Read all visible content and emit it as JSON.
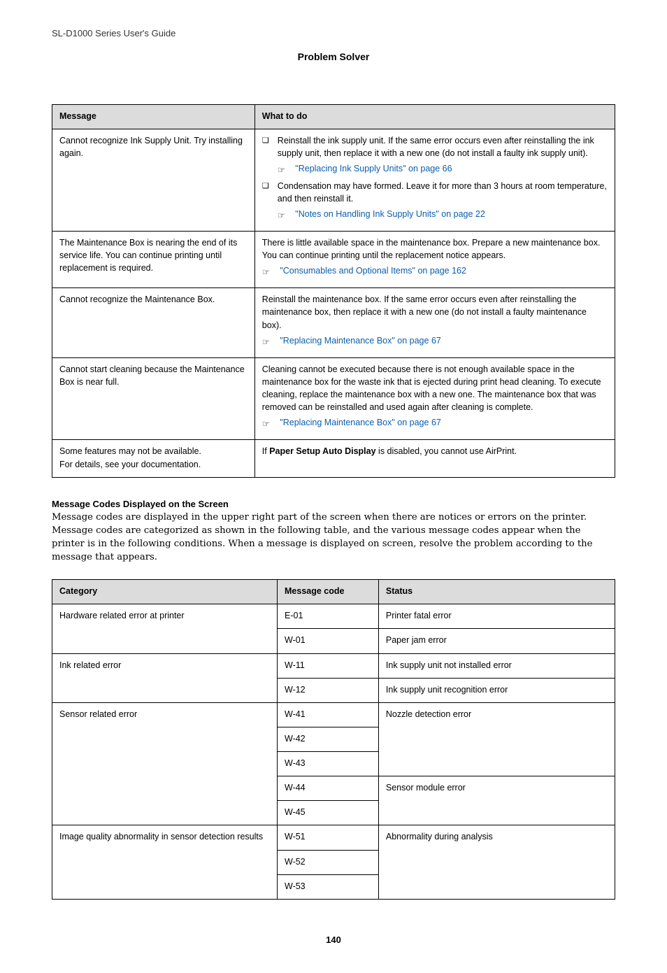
{
  "running_head": "SL-D1000 Series User's Guide",
  "section_title": "Problem Solver",
  "msg_table": {
    "headers": [
      "Message",
      "What to do"
    ],
    "rows": [
      {
        "message": "Cannot recognize Ink Supply Unit. Try installing again.",
        "actions": [
          {
            "bullet": "❏",
            "text": "Reinstall the ink supply unit. If the same error occurs even after reinstalling the ink supply unit, then replace it with a new one (do not install a faulty ink supply unit).",
            "xref": "\"Replacing Ink Supply Units\" on page 66"
          },
          {
            "bullet": "❏",
            "text": "Condensation may have formed. Leave it for more than 3 hours at room temperature, and then reinstall it.",
            "xref": "\"Notes on Handling Ink Supply Units\" on page 22"
          }
        ]
      },
      {
        "message": "The Maintenance Box is nearing the end of its service life. You can continue printing until replacement is required.",
        "plain": "There is little available space in the maintenance box. Prepare a new maintenance box. You can continue printing until the replacement notice appears.",
        "xref": "\"Consumables and Optional Items\" on page 162"
      },
      {
        "message": "Cannot recognize the Maintenance Box.",
        "plain": "Reinstall the maintenance box. If the same error occurs even after reinstalling the maintenance box, then replace it with a new one (do not install a faulty maintenance box).",
        "xref": "\"Replacing Maintenance Box\" on page 67"
      },
      {
        "message": "Cannot start cleaning because the Maintenance Box is near full.",
        "plain": "Cleaning cannot be executed because there is not enough available space in the maintenance box for the waste ink that is ejected during print head cleaning. To execute cleaning, replace the maintenance box with a new one. The maintenance box that was removed can be reinstalled and used again after cleaning is complete.",
        "xref": "\"Replacing Maintenance Box\" on page 67"
      },
      {
        "message": "Some features may not be available.\nFor details, see your documentation.",
        "plain_rich_pre": "If ",
        "plain_rich_bold": "Paper Setup Auto Display",
        "plain_rich_post": " is disabled, you cannot use AirPrint."
      }
    ]
  },
  "codes_heading": "Message Codes Displayed on the Screen",
  "codes_para": "Message codes are displayed in the upper right part of the screen when there are notices or errors on the printer. Message codes are categorized as shown in the following table, and the various message codes appear when the printer is in the following conditions. When a message is displayed on screen, resolve the problem according to the message that appears.",
  "cat_table": {
    "headers": [
      "Category",
      "Message code",
      "Status"
    ],
    "rows": [
      {
        "category": "Hardware related error at printer",
        "code": "E-01",
        "status": "Printer fatal error"
      },
      {
        "code": "W-01",
        "status": "Paper jam error"
      },
      {
        "category": "Ink related error",
        "code": "W-11",
        "status": "Ink supply unit not installed error"
      },
      {
        "code": "W-12",
        "status": "Ink supply unit recognition error"
      },
      {
        "category": "Sensor related error",
        "code": "W-41",
        "status": "Nozzle detection error"
      },
      {
        "code": "W-42"
      },
      {
        "code": "W-43"
      },
      {
        "code": "W-44",
        "status": "Sensor module error"
      },
      {
        "code": "W-45"
      },
      {
        "category": "Image quality abnormality in sensor detection results",
        "code": "W-51",
        "status": "Abnormality during analysis"
      },
      {
        "code": "W-52"
      },
      {
        "code": "W-53"
      }
    ]
  },
  "hand_icon": "☞",
  "page_number": "140"
}
